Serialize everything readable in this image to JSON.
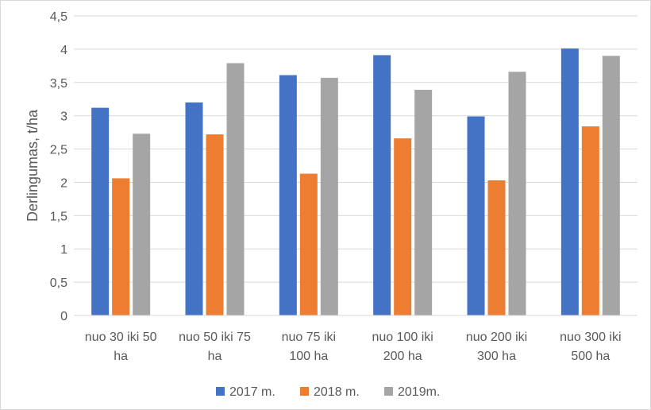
{
  "chart_data": {
    "type": "bar",
    "title": "",
    "xlabel": "",
    "ylabel": "Derlingumas, t/ha",
    "ylim": [
      0,
      4.5
    ],
    "ytick_step": 0.5,
    "ytick_labels": [
      "0",
      "0,5",
      "1",
      "1,5",
      "2",
      "2,5",
      "3",
      "3,5",
      "4",
      "4,5"
    ],
    "grid": true,
    "legend_position": "bottom",
    "categories": [
      [
        "nuo 30 iki 50",
        "ha"
      ],
      [
        "nuo 50 iki 75",
        "ha"
      ],
      [
        "nuo 75 iki",
        "100 ha"
      ],
      [
        "nuo 100 iki",
        "200 ha"
      ],
      [
        "nuo 200 iki",
        "300 ha"
      ],
      [
        "nuo 300 iki",
        "500 ha"
      ]
    ],
    "series": [
      {
        "name": "2017 m.",
        "color": "#4472c4",
        "values": [
          3.12,
          3.2,
          3.61,
          3.91,
          2.99,
          4.01
        ]
      },
      {
        "name": "2018 m.",
        "color": "#ed7d31",
        "values": [
          2.06,
          2.72,
          2.13,
          2.66,
          2.03,
          2.84
        ]
      },
      {
        "name": "2019m.",
        "color": "#a5a5a5",
        "values": [
          2.73,
          3.79,
          3.57,
          3.39,
          3.66,
          3.9
        ]
      }
    ]
  }
}
